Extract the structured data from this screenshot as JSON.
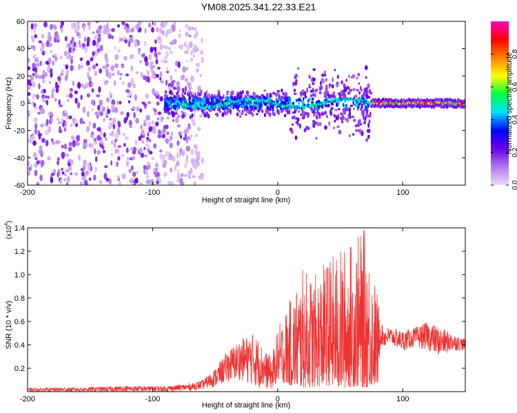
{
  "chart_data": [
    {
      "type": "heatmap",
      "title": "YM08.2025.341.22.33.E21",
      "xlabel": "Height of straight line (km)",
      "ylabel": "Frequency (Hz)",
      "xlim": [
        -200,
        150
      ],
      "ylim": [
        -60,
        60
      ],
      "xticks": [
        -200,
        -100,
        0,
        100
      ],
      "xtick_labels": [
        "-200",
        "-100",
        "0",
        "100"
      ],
      "yticks": [
        -60,
        -40,
        -20,
        0,
        20,
        40,
        60
      ],
      "ytick_labels": [
        "-60",
        "-40",
        "-20",
        "0",
        "20",
        "40",
        "60"
      ],
      "colorbar": {
        "label": "Normalized spectral amplitude",
        "range": [
          0,
          1
        ],
        "ticks": [
          0,
          0.2,
          0.4,
          0.6,
          0.8
        ],
        "tick_labels": [
          "0.0",
          "0.2",
          "0.4",
          "0.6",
          "0.8"
        ],
        "colors": [
          "#f0d8f8",
          "#b07af0",
          "#6a00e8",
          "#0000ff",
          "#00e0ff",
          "#00ff40",
          "#ffff00",
          "#ff8000",
          "#ff0000",
          "#ff00c0"
        ]
      },
      "regions": [
        {
          "x_range": [
            -200,
            -95
          ],
          "description_value": "diffuse broadband amplitude 0.1-0.2"
        },
        {
          "x_range": [
            -95,
            -60
          ],
          "description_value": "band narrowing near 0 Hz"
        },
        {
          "x_range": [
            -80,
            75
          ],
          "center_frequency_hz": 0,
          "peak_amplitude": 0.5
        },
        {
          "x_range": [
            75,
            150
          ],
          "center_frequency_hz": 0,
          "peak_amplitude": 0.95
        }
      ]
    },
    {
      "type": "line",
      "xlabel": "Height of straight line (km)",
      "ylabel": "SNR (10 * v/v)",
      "y_multiplier": "(x10",
      "y_multiplier_exp": "4",
      "xlim": [
        -200,
        150
      ],
      "ylim": [
        0,
        1.4
      ],
      "xticks": [
        -200,
        -100,
        0,
        100
      ],
      "xtick_labels": [
        "-200",
        "-100",
        "0",
        "100"
      ],
      "yticks": [
        0.2,
        0.4,
        0.6,
        0.8,
        1.0,
        1.2,
        1.4
      ],
      "ytick_labels": [
        "0.2",
        "0.4",
        "0.6",
        "0.8",
        "1.0",
        "1.2",
        "1.4"
      ],
      "line_color": "#ee3333",
      "envelope": {
        "x": [
          -200,
          -150,
          -120,
          -90,
          -70,
          -60,
          -50,
          -40,
          -30,
          -20,
          -15,
          -10,
          -5,
          0,
          10,
          20,
          30,
          40,
          50,
          60,
          70,
          75,
          80,
          82,
          85,
          90,
          100,
          110,
          120,
          130,
          140,
          150
        ],
        "y_max": [
          0.03,
          0.04,
          0.05,
          0.05,
          0.07,
          0.1,
          0.2,
          0.35,
          0.45,
          0.5,
          0.45,
          0.35,
          0.3,
          0.55,
          0.8,
          1.05,
          1.0,
          1.15,
          1.22,
          1.3,
          1.4,
          1.1,
          0.85,
          0.6,
          0.55,
          0.55,
          0.52,
          0.55,
          0.6,
          0.55,
          0.5,
          0.45
        ],
        "y_min": [
          0.0,
          0.0,
          0.0,
          0.0,
          0.01,
          0.02,
          0.04,
          0.08,
          0.1,
          0.05,
          0.03,
          0.02,
          0.02,
          0.1,
          0.05,
          0.03,
          0.04,
          0.05,
          0.02,
          0.04,
          0.03,
          0.05,
          0.05,
          0.4,
          0.38,
          0.4,
          0.35,
          0.38,
          0.35,
          0.3,
          0.35,
          0.35
        ]
      }
    }
  ]
}
